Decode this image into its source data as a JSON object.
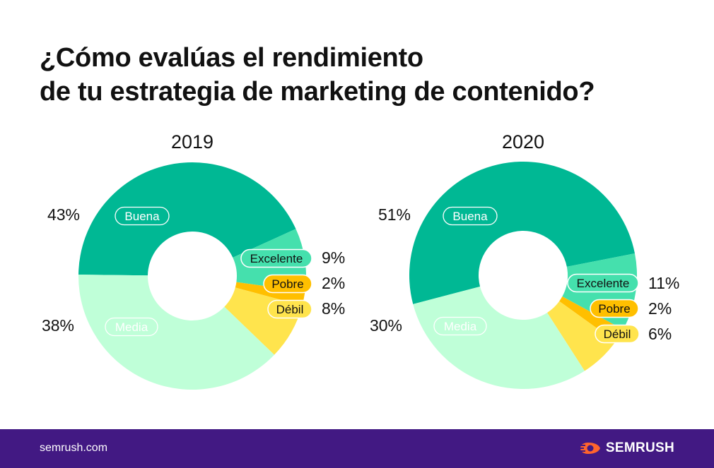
{
  "title": {
    "line1": "¿Cómo evalúas el rendimiento",
    "line2": "de tu estrategia de marketing de contenido?"
  },
  "colors": {
    "Buena": "#00b894",
    "Excelente": "#45e0ad",
    "Pobre": "#ffbf00",
    "Débil": "#ffe44d",
    "Media": "#bfffd8",
    "footer": "#421983",
    "brand": "#ff642d"
  },
  "chart_data": [
    {
      "type": "pie",
      "subtype": "donut",
      "title": "2019",
      "categories": [
        "Buena",
        "Excelente",
        "Pobre",
        "Débil",
        "Media"
      ],
      "values": [
        43,
        9,
        2,
        8,
        38
      ],
      "value_labels": [
        "43%",
        "9%",
        "2%",
        "8%",
        "38%"
      ]
    },
    {
      "type": "pie",
      "subtype": "donut",
      "title": "2020",
      "categories": [
        "Buena",
        "Excelente",
        "Pobre",
        "Débil",
        "Media"
      ],
      "values": [
        51,
        11,
        2,
        6,
        30
      ],
      "value_labels": [
        "51%",
        "11%",
        "2%",
        "6%",
        "30%"
      ]
    }
  ],
  "footer": {
    "url": "semrush.com",
    "brand": "SEMRUSH",
    "brand_icon": "semrush-flame-icon"
  }
}
